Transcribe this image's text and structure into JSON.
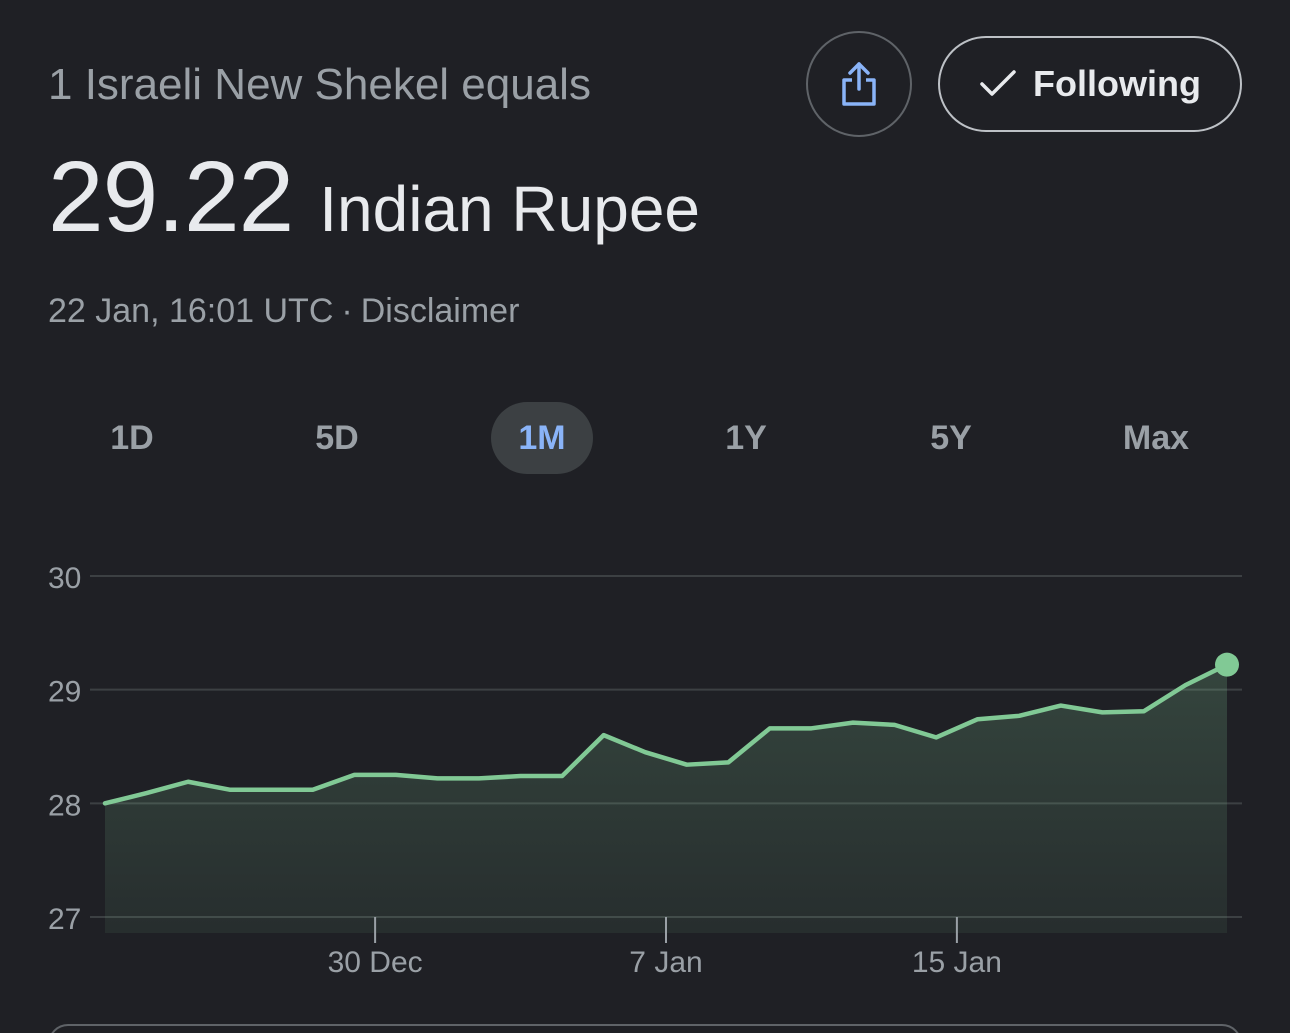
{
  "header": {
    "subtitle": "1 Israeli New Shekel equals",
    "rate_value": "29.22",
    "rate_currency": "Indian Rupee",
    "timestamp": "22 Jan, 16:01 UTC",
    "separator": "·",
    "disclaimer": "Disclaimer",
    "share_icon": "share-icon",
    "follow_label": "Following",
    "follow_icon": "checkmark-icon"
  },
  "tabs": [
    {
      "label": "1D",
      "active": false
    },
    {
      "label": "5D",
      "active": false
    },
    {
      "label": "1M",
      "active": true
    },
    {
      "label": "1Y",
      "active": false
    },
    {
      "label": "5Y",
      "active": false
    },
    {
      "label": "Max",
      "active": false
    }
  ],
  "colors": {
    "background": "#1f2025",
    "line": "#81c995",
    "active_tab_text": "#8ab4f8",
    "active_tab_bg": "#3c4043",
    "share_icon": "#8ab4f8"
  },
  "chart_data": {
    "type": "area",
    "ylim": [
      27,
      30
    ],
    "yticks": [
      "30",
      "29",
      "28",
      "27"
    ],
    "ytick_values": [
      30,
      29,
      28,
      27
    ],
    "x_tick_labels": [
      "30 Dec",
      "7 Jan",
      "15 Jan"
    ],
    "x_tick_indices": [
      6.5,
      13.5,
      20.5
    ],
    "grid": true,
    "series": [
      {
        "values": [
          28.0,
          28.09,
          28.19,
          28.12,
          28.12,
          28.12,
          28.25,
          28.25,
          28.22,
          28.22,
          28.24,
          28.24,
          28.6,
          28.45,
          28.34,
          28.36,
          28.66,
          28.66,
          28.71,
          28.69,
          28.58,
          28.74,
          28.77,
          28.86,
          28.8,
          28.81,
          29.04,
          29.22
        ]
      }
    ]
  }
}
